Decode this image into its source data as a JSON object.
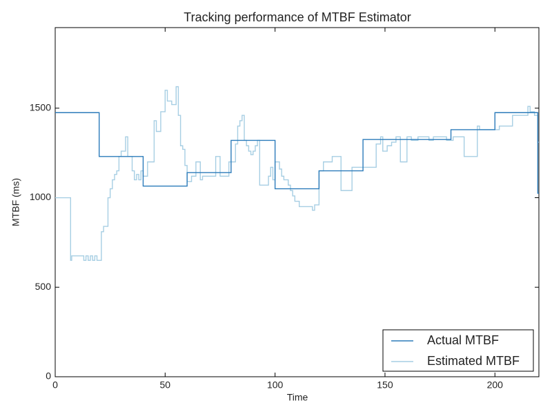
{
  "chart_data": {
    "type": "step",
    "title": "Tracking performance of MTBF Estimator",
    "x_label": "Time",
    "y_label": "MTBF (ms)",
    "xlim": [
      0,
      220
    ],
    "ylim": [
      0,
      1950
    ],
    "xticks": [
      0,
      50,
      100,
      150,
      200
    ],
    "yticks": [
      0,
      500,
      1000,
      1500
    ],
    "legend": "lower right",
    "series": [
      {
        "name": "Actual MTBF",
        "color": "#2b7bba",
        "x": [
          0,
          20,
          40,
          60,
          80,
          100,
          120,
          140,
          180,
          200,
          219.5,
          220
        ],
        "values": [
          1475,
          1230,
          1065,
          1140,
          1320,
          1050,
          1150,
          1325,
          1380,
          1475,
          1025,
          1025
        ]
      },
      {
        "name": "Estimated MTBF",
        "color": "#a6cee3",
        "x": [
          0,
          7,
          7.5,
          13,
          14,
          15,
          16,
          17,
          18,
          19,
          21,
          22,
          24,
          25,
          26,
          27,
          28,
          29,
          30,
          32,
          33,
          35,
          36,
          37,
          38,
          39,
          40,
          42,
          45,
          46,
          48,
          50,
          51,
          53,
          55,
          56,
          57,
          58,
          59,
          60,
          62,
          64,
          66,
          67,
          73,
          75,
          79,
          82,
          83,
          84,
          85,
          86,
          87,
          88,
          89,
          90,
          91,
          92,
          93,
          97,
          98,
          99,
          100,
          102,
          103,
          104,
          106,
          107,
          108,
          109,
          111,
          117,
          118,
          120,
          122,
          126,
          130,
          135,
          146,
          148,
          149,
          151,
          153,
          155,
          157,
          160,
          162,
          165,
          170,
          172,
          178,
          181,
          186,
          192,
          193,
          202,
          208,
          215,
          216,
          218,
          219.5,
          220
        ],
        "values": [
          1000,
          650,
          675,
          650,
          675,
          650,
          675,
          650,
          675,
          650,
          810,
          840,
          1000,
          1050,
          1100,
          1130,
          1150,
          1230,
          1260,
          1340,
          1230,
          1150,
          1100,
          1130,
          1100,
          1150,
          1120,
          1200,
          1430,
          1370,
          1480,
          1600,
          1540,
          1520,
          1620,
          1460,
          1290,
          1270,
          1180,
          1090,
          1120,
          1200,
          1100,
          1120,
          1230,
          1120,
          1200,
          1300,
          1400,
          1430,
          1460,
          1320,
          1290,
          1260,
          1240,
          1260,
          1290,
          1320,
          1070,
          1120,
          1170,
          1100,
          1200,
          1160,
          1120,
          1100,
          1070,
          1040,
          1010,
          980,
          950,
          930,
          960,
          1150,
          1200,
          1230,
          1040,
          1170,
          1300,
          1340,
          1260,
          1290,
          1310,
          1340,
          1200,
          1340,
          1320,
          1340,
          1320,
          1340,
          1320,
          1340,
          1230,
          1400,
          1380,
          1400,
          1460,
          1510,
          1480,
          1460,
          1310,
          1310
        ]
      }
    ]
  }
}
